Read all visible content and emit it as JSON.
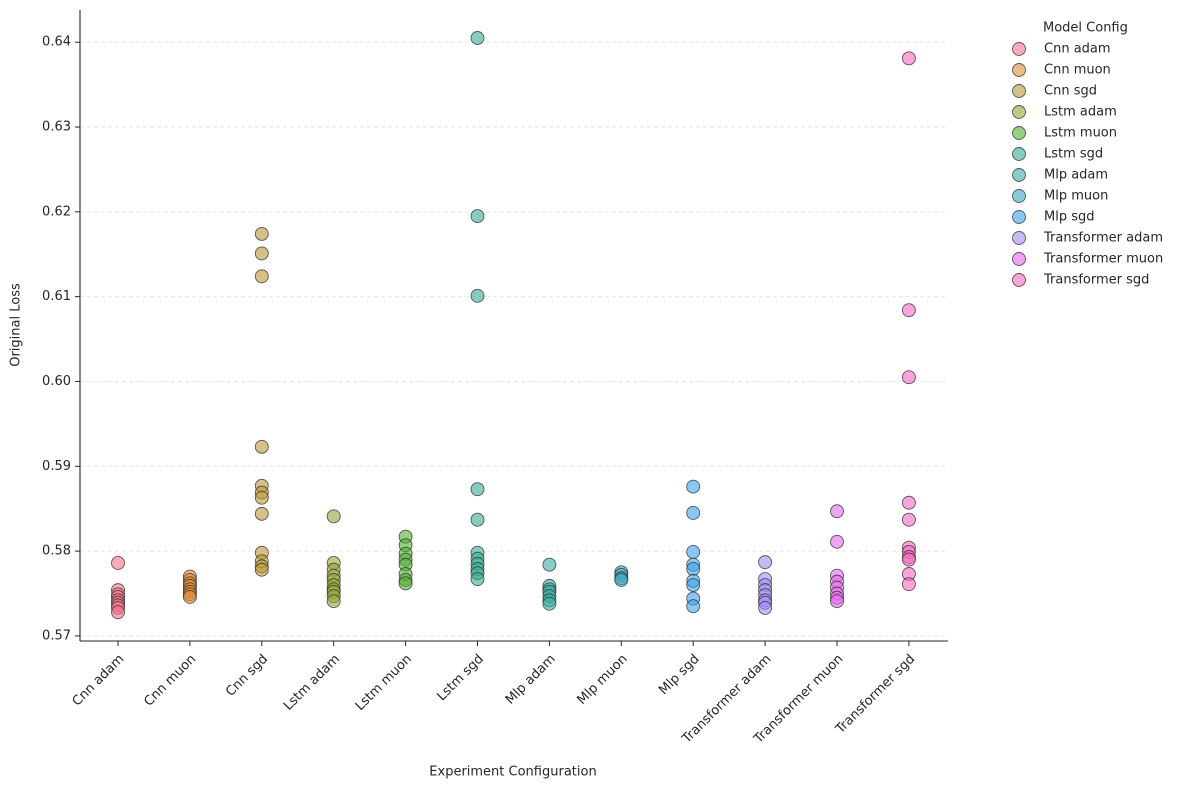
{
  "chart_data": {
    "type": "scatter",
    "x_label": "Experiment Configuration",
    "y_label": "Original Loss",
    "legend_title": "Model Config",
    "legend": "upper right outside",
    "grid": true,
    "categories": [
      "Cnn adam",
      "Cnn muon",
      "Cnn sgd",
      "Lstm adam",
      "Lstm muon",
      "Lstm sgd",
      "Mlp adam",
      "Mlp muon",
      "Mlp sgd",
      "Transformer adam",
      "Transformer muon",
      "Transformer sgd"
    ],
    "ylim": [
      0.5694,
      0.6438
    ],
    "yticks": [
      0.57,
      0.58,
      0.59,
      {
        "value": 0.6,
        "label": "0.60"
      },
      0.61,
      0.62,
      0.63,
      0.64
    ],
    "series": [
      {
        "name": "Cnn adam",
        "color": "#f77189",
        "values": [
          0.5786,
          0.5754,
          0.5749,
          0.5746,
          0.5742,
          0.5739,
          0.5736,
          0.5733,
          0.5728
        ]
      },
      {
        "name": "Cnn muon",
        "color": "#e18a32",
        "values": [
          0.577,
          0.5766,
          0.5762,
          0.5759,
          0.5755,
          0.5752,
          0.5749,
          0.5746
        ]
      },
      {
        "name": "Cnn sgd",
        "color": "#bb9832",
        "values": [
          0.6174,
          0.6151,
          0.6124,
          0.5923,
          0.5877,
          0.5869,
          0.5863,
          0.5844,
          0.5798,
          0.5788,
          0.5782,
          0.5778
        ]
      },
      {
        "name": "Lstm adam",
        "color": "#97a431",
        "values": [
          0.5841,
          0.5786,
          0.5778,
          0.5771,
          0.5766,
          0.576,
          0.5755,
          0.5752,
          0.5747,
          0.5741
        ]
      },
      {
        "name": "Lstm muon",
        "color": "#50b131",
        "values": [
          0.5817,
          0.5807,
          0.5797,
          0.579,
          0.5784,
          0.5773,
          0.5766,
          0.5762
        ]
      },
      {
        "name": "Lstm sgd",
        "color": "#34ae91",
        "values": [
          0.6405,
          0.6195,
          0.6101,
          0.5873,
          0.5837,
          0.5798,
          0.5791,
          0.5785,
          0.5779,
          0.5774,
          0.5767
        ]
      },
      {
        "name": "Mlp adam",
        "color": "#36ada4",
        "values": [
          0.5784,
          0.5759,
          0.5755,
          0.5752,
          0.5747,
          0.5742,
          0.5738
        ]
      },
      {
        "name": "Mlp muon",
        "color": "#38a8c5",
        "values": [
          0.5775,
          0.5772,
          0.5768,
          0.5766
        ]
      },
      {
        "name": "Mlp sgd",
        "color": "#3ba3ec",
        "values": [
          0.5876,
          0.5845,
          0.5799,
          0.5784,
          0.5779,
          0.5765,
          0.576,
          0.5744,
          0.5735
        ]
      },
      {
        "name": "Transformer adam",
        "color": "#a48cf4",
        "values": [
          0.5787,
          0.5767,
          0.576,
          0.5754,
          0.5748,
          0.5742,
          0.5739,
          0.5733
        ]
      },
      {
        "name": "Transformer muon",
        "color": "#e866f4",
        "values": [
          0.5847,
          0.5811,
          0.5771,
          0.5764,
          0.5757,
          0.575,
          0.5745,
          0.5741
        ]
      },
      {
        "name": "Transformer sgd",
        "color": "#f668c2",
        "values": [
          0.6381,
          0.6084,
          0.6005,
          0.5857,
          0.5837,
          0.5804,
          0.5799,
          0.5793,
          0.579,
          0.5773,
          0.5761
        ]
      }
    ]
  }
}
